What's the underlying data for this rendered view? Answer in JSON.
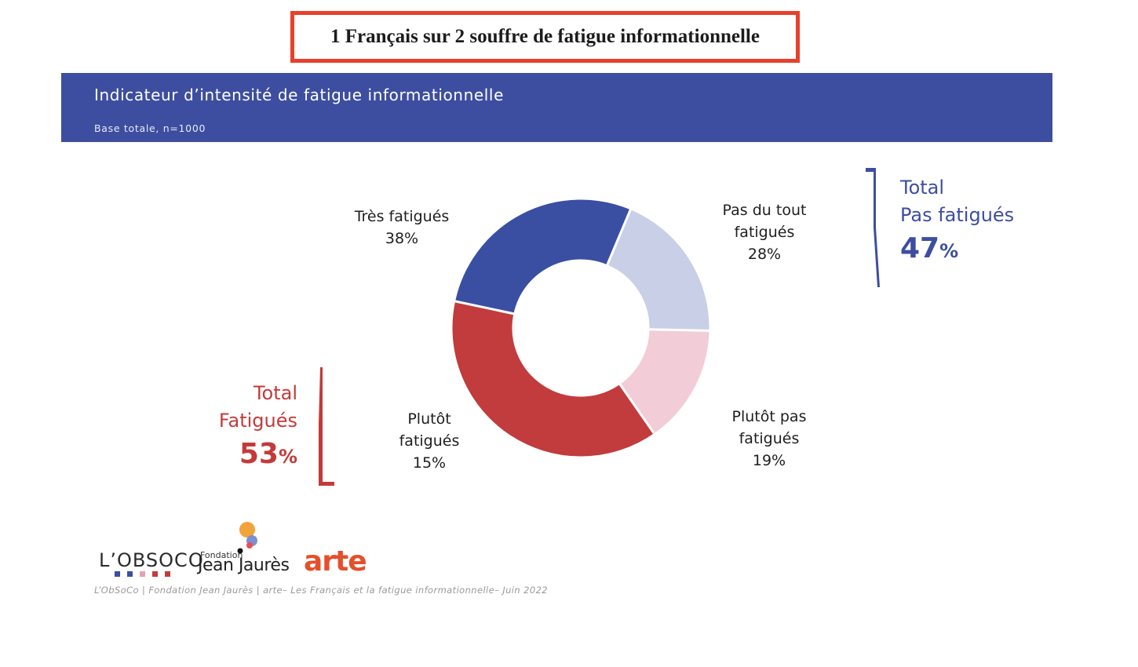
{
  "headline": "1 Français sur 2 souffre de fatigue informationnelle",
  "banner": {
    "title": "Indicateur d’intensité de fatigue informationnelle",
    "subtitle": "Base totale, n=1000"
  },
  "colors": {
    "banner": "#3d4ea0",
    "headline_border": "#e8402a",
    "tres_fatigues": "#c23b3d",
    "plutot_fatigues": "#f2ccd7",
    "plutot_pas_fatigues": "#c8cfe6",
    "pas_du_tout_fatigues": "#3a4ea2",
    "total_pas_fatigues": "#3d4ea0",
    "total_fatigues": "#c43a3a"
  },
  "chart_data": {
    "type": "pie",
    "variant": "donut",
    "slices": [
      {
        "label_lines": [
          "Pas du tout",
          "fatigués"
        ],
        "value": 28,
        "value_label": "28%",
        "color": "#3a4ea2"
      },
      {
        "label_lines": [
          "Plutôt pas",
          "fatigués"
        ],
        "value": 19,
        "value_label": "19%",
        "color": "#c8cfe6"
      },
      {
        "label_lines": [
          "Plutôt",
          "fatigués"
        ],
        "value": 15,
        "value_label": "15%",
        "color": "#f2ccd7"
      },
      {
        "label_lines": [
          "Très fatigués"
        ],
        "value": 38,
        "value_label": "38%",
        "color": "#c23b3d"
      }
    ]
  },
  "totals": {
    "pas_fatigues": {
      "line1": "Total",
      "line2": "Pas fatigués",
      "value": "47",
      "unit": "%"
    },
    "fatigues": {
      "line1": "Total",
      "line2": "Fatigués",
      "value": "53",
      "unit": "%"
    }
  },
  "logos": {
    "obsoco": "L’OBSOCO",
    "fjj_small": "Fondation",
    "fjj_big": "Jean Jaurès",
    "arte": "arte"
  },
  "footer": "L’ObSoCo | Fondation Jean Jaurès | arte– Les Français et la fatigue informationnelle– Juin 2022"
}
